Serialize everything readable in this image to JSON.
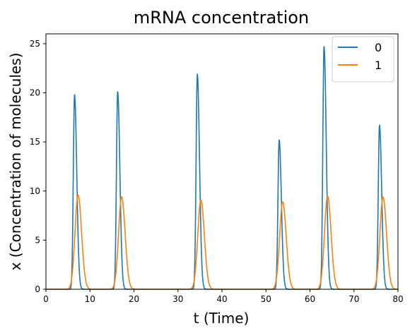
{
  "chart_data": {
    "type": "line",
    "title": "mRNA concentration",
    "xlabel": "t (Time)",
    "ylabel": "x (Concentration of molecules)",
    "xlim": [
      0,
      80
    ],
    "ylim": [
      0,
      26
    ],
    "xticks": [
      0,
      10,
      20,
      30,
      40,
      50,
      60,
      70,
      80
    ],
    "yticks": [
      0,
      5,
      10,
      15,
      20,
      25
    ],
    "grid": false,
    "legend": "top-right",
    "series": [
      {
        "name": "0",
        "color": "#1f77b4",
        "peaks": [
          {
            "t": 6.5,
            "height": 19.8
          },
          {
            "t": 16.3,
            "height": 20.1
          },
          {
            "t": 34.4,
            "height": 21.9
          },
          {
            "t": 53.0,
            "height": 15.2
          },
          {
            "t": 63.2,
            "height": 24.7
          },
          {
            "t": 75.8,
            "height": 16.7
          }
        ]
      },
      {
        "name": "1",
        "color": "#ff7f0e",
        "peaks": [
          {
            "t": 7.3,
            "height": 9.6
          },
          {
            "t": 17.2,
            "height": 9.4
          },
          {
            "t": 35.2,
            "height": 9.1
          },
          {
            "t": 53.8,
            "height": 8.9
          },
          {
            "t": 64.0,
            "height": 9.5
          },
          {
            "t": 76.6,
            "height": 9.4
          }
        ]
      }
    ]
  }
}
